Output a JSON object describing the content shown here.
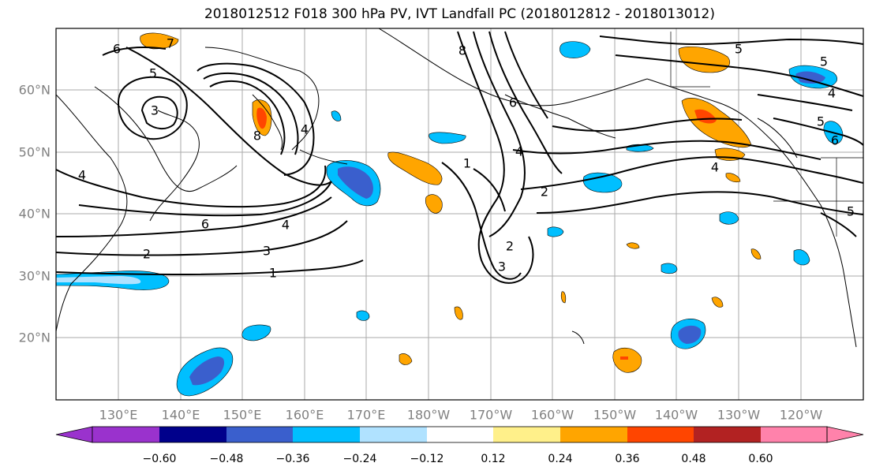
{
  "title": "2018012512 F018 300 hPa PV, IVT Landfall PC (2018012812 - 2018013012)",
  "map": {
    "lat_labels": [
      "60°N",
      "50°N",
      "40°N",
      "30°N",
      "20°N"
    ],
    "lon_labels": [
      "130°E",
      "140°E",
      "150°E",
      "160°E",
      "170°E",
      "180°W",
      "170°W",
      "160°W",
      "150°W",
      "140°W",
      "130°W",
      "120°W"
    ],
    "contour_labels": [
      "6",
      "7",
      "5",
      "3",
      "8",
      "4",
      "4",
      "6",
      "4",
      "3",
      "1",
      "2",
      "8",
      "6",
      "4",
      "2",
      "1",
      "3",
      "2",
      "5",
      "5",
      "4",
      "5",
      "6",
      "4",
      "5"
    ]
  },
  "colorbar": {
    "tick_labels": [
      "−0.60",
      "−0.48",
      "−0.36",
      "−0.24",
      "−0.12",
      "0.12",
      "0.24",
      "0.36",
      "0.48",
      "0.60"
    ],
    "colors": [
      "#9a32cd",
      "#00008b",
      "#3a5fcd",
      "#00bfff",
      "#b0e2ff",
      "#ffffff",
      "#fff08a",
      "#ffa500",
      "#ff4500",
      "#b22222",
      "#ff82ab"
    ]
  }
}
